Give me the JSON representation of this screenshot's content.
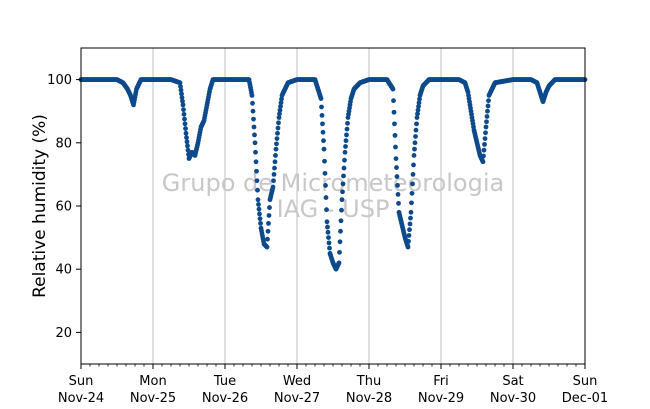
{
  "chart_data": {
    "type": "scatter",
    "title": "",
    "xlabel": "",
    "ylabel": "Relative humidity (%)",
    "ylim": [
      10,
      110
    ],
    "xlim": [
      "2024-11-24",
      "2024-12-01"
    ],
    "yticks": [
      20,
      40,
      60,
      80,
      100
    ],
    "xticks": [
      {
        "day": "Sun",
        "date": "Nov-24"
      },
      {
        "day": "Mon",
        "date": "Nov-25"
      },
      {
        "day": "Tue",
        "date": "Nov-26"
      },
      {
        "day": "Wed",
        "date": "Nov-27"
      },
      {
        "day": "Thu",
        "date": "Nov-28"
      },
      {
        "day": "Fri",
        "date": "Nov-29"
      },
      {
        "day": "Sat",
        "date": "Nov-30"
      },
      {
        "day": "Sun",
        "date": "Dec-01"
      }
    ],
    "grid": "vertical lines at day ticks",
    "watermark": [
      "Grupo de Micrometeorologia",
      "IAG - USP"
    ],
    "marker_color": "#0d4a8c",
    "series": [
      {
        "points": [
          [
            "2024-11-24 00:00",
            100
          ],
          [
            "2024-11-24 12:00",
            100
          ],
          [
            "2024-11-24 14:00",
            99
          ],
          [
            "2024-11-24 15:30",
            97
          ],
          [
            "2024-11-24 16:30",
            95
          ],
          [
            "2024-11-24 17:30",
            92
          ],
          [
            "2024-11-24 18:30",
            97
          ],
          [
            "2024-11-24 20:00",
            100
          ],
          [
            "2024-11-25 00:00",
            100
          ],
          [
            "2024-11-25 06:00",
            100
          ],
          [
            "2024-11-25 09:00",
            99
          ],
          [
            "2024-11-25 10:00",
            92
          ],
          [
            "2024-11-25 11:00",
            83
          ],
          [
            "2024-11-25 12:00",
            75
          ],
          [
            "2024-11-25 13:00",
            77
          ],
          [
            "2024-11-25 14:00",
            76
          ],
          [
            "2024-11-25 15:00",
            80
          ],
          [
            "2024-11-25 16:00",
            85
          ],
          [
            "2024-11-25 17:00",
            87
          ],
          [
            "2024-11-25 18:00",
            92
          ],
          [
            "2024-11-25 19:00",
            97
          ],
          [
            "2024-11-25 20:00",
            100
          ],
          [
            "2024-11-26 00:00",
            100
          ],
          [
            "2024-11-26 08:00",
            100
          ],
          [
            "2024-11-26 09:00",
            95
          ],
          [
            "2024-11-26 10:00",
            80
          ],
          [
            "2024-11-26 11:00",
            62
          ],
          [
            "2024-11-26 12:00",
            53
          ],
          [
            "2024-11-26 13:00",
            48
          ],
          [
            "2024-11-26 14:00",
            47
          ],
          [
            "2024-11-26 15:00",
            62
          ],
          [
            "2024-11-26 16:00",
            66
          ],
          [
            "2024-11-26 17:00",
            78
          ],
          [
            "2024-11-26 18:00",
            88
          ],
          [
            "2024-11-26 19:00",
            95
          ],
          [
            "2024-11-26 21:00",
            99
          ],
          [
            "2024-11-27 00:00",
            100
          ],
          [
            "2024-11-27 06:00",
            100
          ],
          [
            "2024-11-27 08:00",
            94
          ],
          [
            "2024-11-27 09:00",
            78
          ],
          [
            "2024-11-27 10:00",
            55
          ],
          [
            "2024-11-27 11:00",
            45
          ],
          [
            "2024-11-27 12:00",
            42
          ],
          [
            "2024-11-27 13:00",
            40
          ],
          [
            "2024-11-27 14:00",
            42
          ],
          [
            "2024-11-27 15:00",
            62
          ],
          [
            "2024-11-27 16:00",
            77
          ],
          [
            "2024-11-27 17:00",
            88
          ],
          [
            "2024-11-27 18:00",
            94
          ],
          [
            "2024-11-27 19:00",
            97
          ],
          [
            "2024-11-27 21:00",
            99
          ],
          [
            "2024-11-28 00:00",
            100
          ],
          [
            "2024-11-28 06:00",
            100
          ],
          [
            "2024-11-28 08:00",
            97
          ],
          [
            "2024-11-28 09:00",
            75
          ],
          [
            "2024-11-28 10:00",
            58
          ],
          [
            "2024-11-28 11:00",
            54
          ],
          [
            "2024-11-28 12:00",
            50
          ],
          [
            "2024-11-28 13:00",
            47
          ],
          [
            "2024-11-28 14:00",
            58
          ],
          [
            "2024-11-28 15:00",
            76
          ],
          [
            "2024-11-28 16:00",
            88
          ],
          [
            "2024-11-28 17:00",
            95
          ],
          [
            "2024-11-28 18:00",
            98
          ],
          [
            "2024-11-28 20:00",
            100
          ],
          [
            "2024-11-29 00:00",
            100
          ],
          [
            "2024-11-29 06:00",
            100
          ],
          [
            "2024-11-29 08:00",
            99
          ],
          [
            "2024-11-29 09:00",
            96
          ],
          [
            "2024-11-29 10:00",
            90
          ],
          [
            "2024-11-29 11:00",
            84
          ],
          [
            "2024-11-29 12:00",
            80
          ],
          [
            "2024-11-29 13:00",
            76
          ],
          [
            "2024-11-29 14:00",
            74
          ],
          [
            "2024-11-29 15:00",
            85
          ],
          [
            "2024-11-29 16:00",
            95
          ],
          [
            "2024-11-29 18:00",
            99
          ],
          [
            "2024-11-30 00:00",
            100
          ],
          [
            "2024-11-30 06:00",
            100
          ],
          [
            "2024-11-30 08:00",
            99
          ],
          [
            "2024-11-30 09:00",
            96
          ],
          [
            "2024-11-30 10:00",
            93
          ],
          [
            "2024-11-30 11:00",
            96
          ],
          [
            "2024-11-30 12:00",
            98
          ],
          [
            "2024-11-30 14:00",
            100
          ],
          [
            "2024-12-01 00:00",
            100
          ]
        ]
      }
    ]
  }
}
